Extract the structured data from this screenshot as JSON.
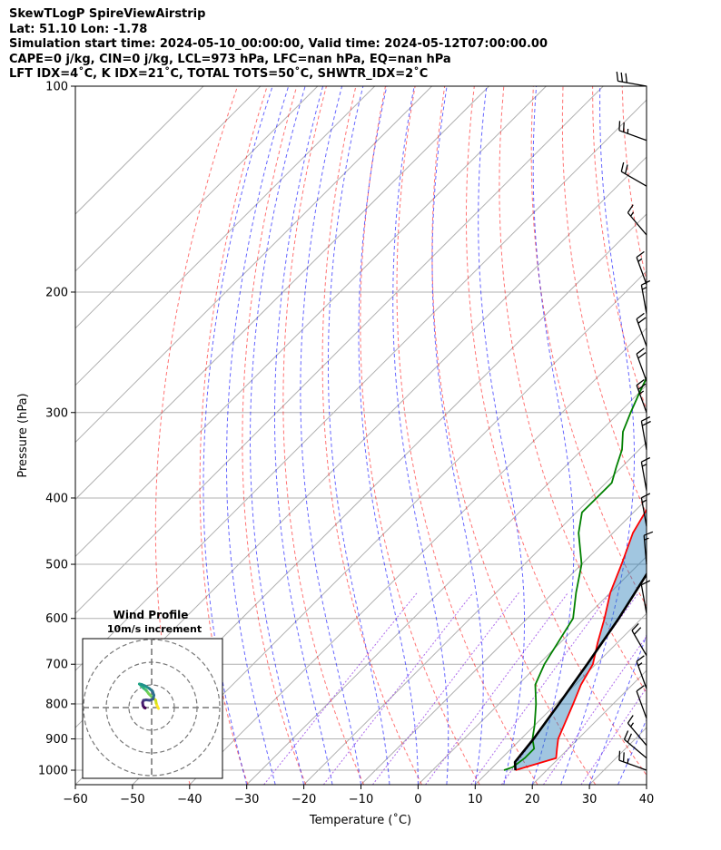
{
  "header": {
    "line1": "SkewTLogP SpireViewAirstrip",
    "line2": "Lat: 51.10   Lon: -1.78",
    "line3": "Simulation start time: 2024-05-10_00:00:00, Valid time: 2024-05-12T07:00:00.00",
    "line4": "CAPE=0 j/kg, CIN=0 j/kg, LCL=973 hPa, LFC=nan hPa, EQ=nan hPa",
    "line5": "LFT IDX=4˚C, K IDX=21˚C, TOTAL TOTS=50˚C, SHWTR_IDX=2˚C"
  },
  "chart_data": {
    "type": "line",
    "xlabel": "Temperature (˚C)",
    "ylabel": "Pressure (hPa)",
    "xlim": [
      -60,
      40
    ],
    "ylim": [
      1050,
      100
    ],
    "yscale": "log",
    "xticks": [
      -60,
      -50,
      -40,
      -30,
      -20,
      -10,
      0,
      10,
      20,
      30,
      40
    ],
    "yticks": [
      1000,
      900,
      800,
      700,
      600,
      500,
      400,
      300,
      200,
      100
    ],
    "grid": true,
    "series": [
      {
        "role": "temperature",
        "color": "#ff0000",
        "points": [
          [
            14.5,
            1000
          ],
          [
            17,
            980
          ],
          [
            19.5,
            960
          ],
          [
            18,
            930
          ],
          [
            16.5,
            900
          ],
          [
            14.8,
            850
          ],
          [
            13,
            800
          ],
          [
            11,
            750
          ],
          [
            9.5,
            700
          ],
          [
            6.5,
            650
          ],
          [
            3.5,
            600
          ],
          [
            0,
            550
          ],
          [
            -3,
            500
          ],
          [
            -6.5,
            450
          ],
          [
            -9,
            400
          ],
          [
            -11,
            370
          ],
          [
            -14,
            340
          ],
          [
            -17,
            310
          ],
          [
            -20,
            285
          ],
          [
            -24,
            265
          ],
          [
            -26,
            250
          ],
          [
            -26.5,
            240
          ],
          [
            -27.5,
            225
          ],
          [
            -28,
            210
          ],
          [
            -29,
            195
          ],
          [
            -31.5,
            180
          ],
          [
            -33,
            170
          ],
          [
            -33,
            160
          ],
          [
            -36,
            145
          ],
          [
            -38,
            130
          ],
          [
            -41,
            115
          ],
          [
            -42,
            105
          ],
          [
            -43,
            100
          ]
        ]
      },
      {
        "role": "dewpoint",
        "color": "#008000",
        "points": [
          [
            12.5,
            1000
          ],
          [
            13.5,
            990
          ],
          [
            14,
            960
          ],
          [
            14,
            930
          ],
          [
            12,
            900
          ],
          [
            10,
            860
          ],
          [
            6.5,
            800
          ],
          [
            3,
            750
          ],
          [
            1,
            700
          ],
          [
            -2,
            600
          ],
          [
            -6,
            550
          ],
          [
            -10,
            500
          ],
          [
            -16,
            450
          ],
          [
            -19,
            420
          ],
          [
            -19,
            400
          ],
          [
            -19,
            380
          ],
          [
            -21,
            360
          ],
          [
            -23,
            340
          ],
          [
            -26,
            320
          ],
          [
            -28,
            300
          ],
          [
            -30,
            280
          ],
          [
            -32,
            260
          ],
          [
            -33,
            230
          ],
          [
            -35,
            210
          ],
          [
            -37,
            200
          ],
          [
            -37,
            190
          ],
          [
            -38,
            175
          ],
          [
            -40,
            165
          ],
          [
            -42,
            160
          ],
          [
            -43,
            150
          ],
          [
            -46,
            135
          ],
          [
            -49,
            120
          ],
          [
            -52,
            110
          ],
          [
            -54,
            100
          ]
        ]
      },
      {
        "role": "parcel",
        "color": "#000000",
        "points": [
          [
            14.5,
            1000
          ],
          [
            13,
            973
          ],
          [
            12.2,
            900
          ],
          [
            10.5,
            800
          ],
          [
            8.5,
            700
          ],
          [
            6,
            600
          ],
          [
            2.5,
            500
          ],
          [
            -2,
            400
          ],
          [
            -8.5,
            300
          ],
          [
            -19,
            200
          ],
          [
            -26,
            160
          ],
          [
            -37,
            120
          ],
          [
            -43,
            100
          ]
        ]
      }
    ],
    "skew": "45-degree isotherms",
    "dry_adiabats_theta_K": [
      230,
      240,
      250,
      260,
      270,
      280,
      290,
      300,
      310,
      320,
      330,
      340,
      350,
      360,
      370,
      380,
      390,
      400,
      410,
      420
    ],
    "moist_adiabats_start_C": [
      -30,
      -25,
      -20,
      -15,
      -10,
      -5,
      0,
      5,
      10,
      15,
      20,
      25,
      30,
      35
    ],
    "isotherm_spacing_C": 10,
    "wind_barbs": [
      {
        "p": 100,
        "speed_kt": 30,
        "dir": 280
      },
      {
        "p": 120,
        "speed_kt": 25,
        "dir": 290
      },
      {
        "p": 140,
        "speed_kt": 20,
        "dir": 300
      },
      {
        "p": 165,
        "speed_kt": 15,
        "dir": 320
      },
      {
        "p": 195,
        "speed_kt": 15,
        "dir": 340
      },
      {
        "p": 215,
        "speed_kt": 15,
        "dir": 350
      },
      {
        "p": 240,
        "speed_kt": 20,
        "dir": 340
      },
      {
        "p": 270,
        "speed_kt": 20,
        "dir": 340
      },
      {
        "p": 300,
        "speed_kt": 25,
        "dir": 340
      },
      {
        "p": 340,
        "speed_kt": 20,
        "dir": 350
      },
      {
        "p": 390,
        "speed_kt": 15,
        "dir": 350
      },
      {
        "p": 440,
        "speed_kt": 15,
        "dir": 350
      },
      {
        "p": 500,
        "speed_kt": 15,
        "dir": 355
      },
      {
        "p": 590,
        "speed_kt": 10,
        "dir": 350
      },
      {
        "p": 680,
        "speed_kt": 20,
        "dir": 330
      },
      {
        "p": 760,
        "speed_kt": 15,
        "dir": 340
      },
      {
        "p": 840,
        "speed_kt": 10,
        "dir": 340
      },
      {
        "p": 920,
        "speed_kt": 15,
        "dir": 320
      },
      {
        "p": 960,
        "speed_kt": 20,
        "dir": 310
      },
      {
        "p": 1000,
        "speed_kt": 25,
        "dir": 290
      }
    ],
    "inset": {
      "title": "Wind Profile",
      "subtitle": "10m/s increment",
      "rings": 3,
      "hodograph_points": [
        [
          1.5,
          -0.2
        ],
        [
          1.2,
          0.4
        ],
        [
          1,
          1
        ],
        [
          0.9,
          1.6
        ],
        [
          0.5,
          2
        ],
        [
          0,
          2.4
        ],
        [
          -0.6,
          3
        ],
        [
          -1.2,
          3.8
        ],
        [
          -1.8,
          4.3
        ],
        [
          -2.4,
          4.9
        ],
        [
          -2.7,
          5.2
        ],
        [
          -2.2,
          5.1
        ],
        [
          -1.5,
          4.8
        ],
        [
          -0.5,
          4.2
        ],
        [
          0.2,
          3.6
        ],
        [
          0.5,
          2.7
        ],
        [
          0.3,
          1.9
        ],
        [
          -0.4,
          1.6
        ],
        [
          -1.2,
          1.7
        ],
        [
          -1.8,
          1.6
        ],
        [
          -2,
          1.1
        ],
        [
          -1.9,
          0.4
        ],
        [
          -1.6,
          0
        ],
        [
          -1.4,
          -0.1
        ]
      ]
    }
  }
}
